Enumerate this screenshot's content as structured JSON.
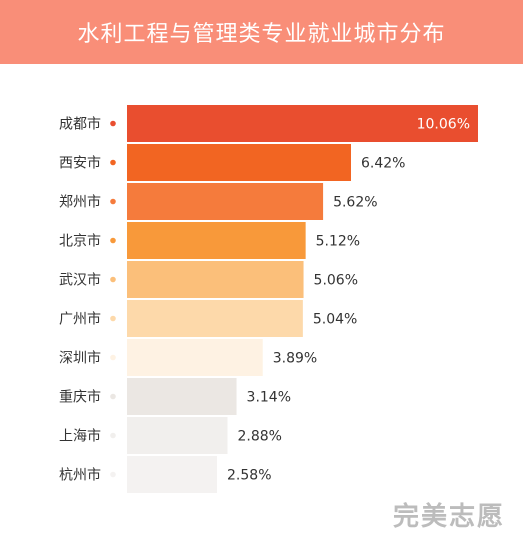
{
  "title": "水利工程与管理类专业就业城市分布",
  "watermark": "完美志愿",
  "chart_data": {
    "type": "bar",
    "orientation": "horizontal",
    "title": "水利工程与管理类专业就业城市分布",
    "categories": [
      "成都市",
      "西安市",
      "郑州市",
      "北京市",
      "武汉市",
      "广州市",
      "深圳市",
      "重庆市",
      "上海市",
      "杭州市"
    ],
    "values": [
      10.06,
      6.42,
      5.62,
      5.12,
      5.06,
      5.04,
      3.89,
      3.14,
      2.88,
      2.58
    ],
    "value_labels": [
      "10.06%",
      "6.42%",
      "5.62%",
      "5.12%",
      "5.06%",
      "5.04%",
      "3.89%",
      "3.14%",
      "2.88%",
      "2.58%"
    ],
    "unit": "%",
    "xlim": [
      0,
      10.06
    ],
    "grid": false,
    "legend": "none",
    "colors": [
      "#e94e2f",
      "#f26522",
      "#f57b3c",
      "#f8993a",
      "#fbbf7a",
      "#fdd9aa",
      "#fef2e3",
      "#ebe7e3",
      "#f1efed",
      "#f4f2f1"
    ],
    "dot_colors": [
      "#e94e2f",
      "#f26522",
      "#f57b3c",
      "#f8993a",
      "#fbbf7a",
      "#fdd9aa",
      "#fef2e3",
      "#ebe7e3",
      "#f1efed",
      "#f4f2f1"
    ],
    "header_color": "#f98e78"
  }
}
